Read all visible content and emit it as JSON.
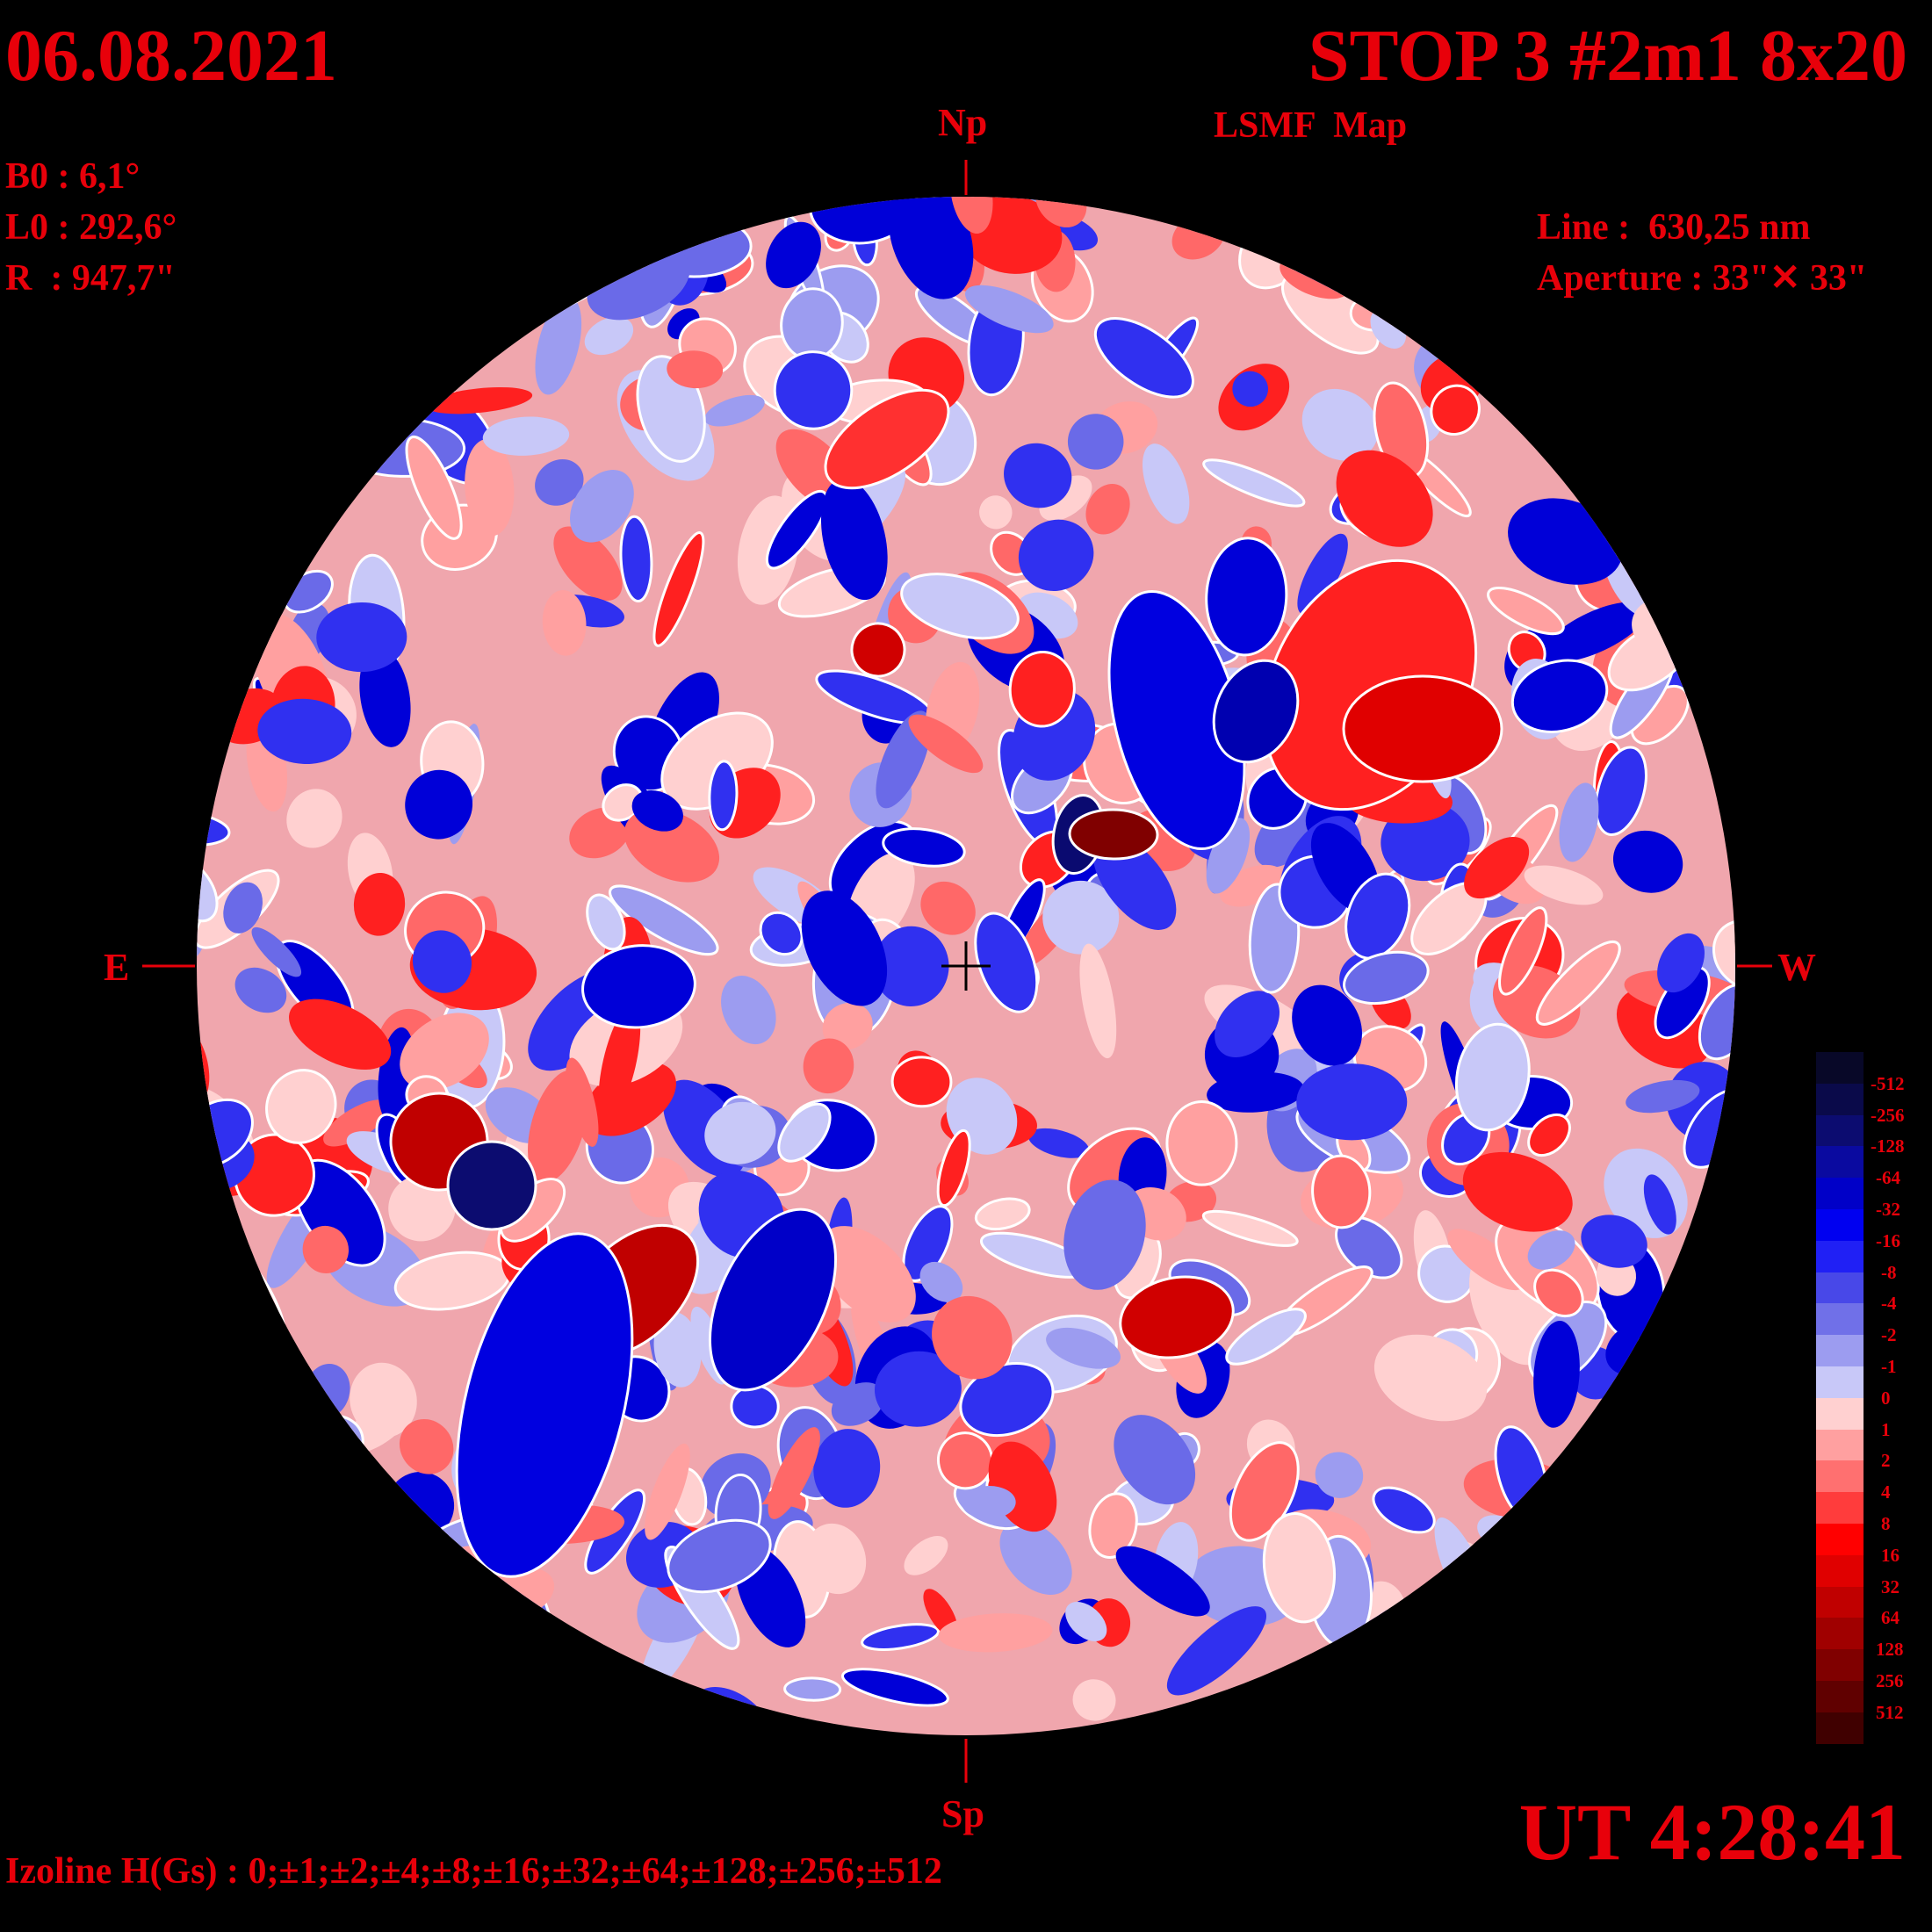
{
  "header": {
    "date": "06.08.2021",
    "title": "STOP 3 #2m1 8x20",
    "subtitle": "LSMF  Map"
  },
  "params": {
    "b0": "B0 : 6,1°",
    "l0": "L0 : 292,6°",
    "r": "R  : 947,7\"",
    "line": "Line :  630,25 nm",
    "aperture": "Aperture : 33\"✕ 33\""
  },
  "directions": {
    "north": "Np",
    "south": "Sp",
    "east": "E",
    "west": "W"
  },
  "footer": {
    "ut": "UT 4:28:41",
    "izoline": "Izoline H(Gs) : 0;±1;±2;±4;±8;±16;±32;±64;±128;±256;±512"
  },
  "legend": {
    "labels": [
      "-512",
      "-256",
      "-128",
      "-64",
      "-32",
      "-16",
      "-8",
      "-4",
      "-2",
      "-1",
      "0",
      "1",
      "2",
      "4",
      "8",
      "16",
      "32",
      "64",
      "128",
      "256",
      "512"
    ],
    "colors": [
      "#080828",
      "#0a0a4a",
      "#0c0c70",
      "#0a0aa0",
      "#0000c8",
      "#0000f0",
      "#2020f5",
      "#4848e8",
      "#7070e8",
      "#9c9cf0",
      "#c8c8f8",
      "#ffd0d0",
      "#ffa0a0",
      "#ff7070",
      "#ff3c3c",
      "#ff0000",
      "#e00000",
      "#c00000",
      "#a00000",
      "#800000",
      "#600000",
      "#400000"
    ]
  },
  "colors": {
    "background": "#000000",
    "text": "#e8000a",
    "isoline": "#ffffff"
  }
}
